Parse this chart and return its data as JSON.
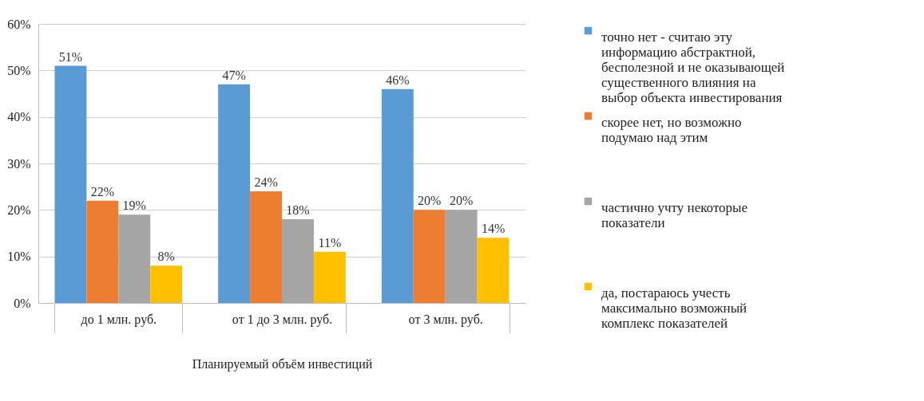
{
  "chart_data": {
    "type": "bar",
    "xlabel": "Планируемый объём инвестиций",
    "categories": [
      "до 1 млн. руб.",
      "от 1 до 3 млн. руб.",
      "от 3 млн. руб."
    ],
    "series": [
      {
        "name": "точно нет - считаю эту информацию абстрактной, бесполезной и не оказывающей существенного влияния на выбор объекта инвестирования",
        "color": "#5b9bd5",
        "values": [
          51,
          47,
          46
        ],
        "value_labels": [
          "51%",
          "47%",
          "46%"
        ]
      },
      {
        "name": "скорее нет, но возможно подумаю над этим",
        "color": "#ed7d31",
        "values": [
          22,
          24,
          20
        ],
        "value_labels": [
          "22%",
          "24%",
          "20%"
        ]
      },
      {
        "name": "частично учту некоторые показатели",
        "color": "#a5a5a5",
        "values": [
          19,
          18,
          20
        ],
        "value_labels": [
          "19%",
          "18%",
          "20%"
        ]
      },
      {
        "name": "да, постараюсь учесть максимально возможный комплекс показателей",
        "color": "#ffc000",
        "values": [
          8,
          11,
          14
        ],
        "value_labels": [
          "8%",
          "11%",
          "14%"
        ]
      }
    ],
    "ylim": [
      0,
      60
    ],
    "yticks": [
      {
        "value": 0,
        "label": "0%"
      },
      {
        "value": 10,
        "label": "10%"
      },
      {
        "value": 20,
        "label": "20%"
      },
      {
        "value": 30,
        "label": "30%"
      },
      {
        "value": 40,
        "label": "40%"
      },
      {
        "value": 50,
        "label": "50%"
      },
      {
        "value": 60,
        "label": "60%"
      }
    ],
    "grid": "y",
    "legend": "right"
  }
}
